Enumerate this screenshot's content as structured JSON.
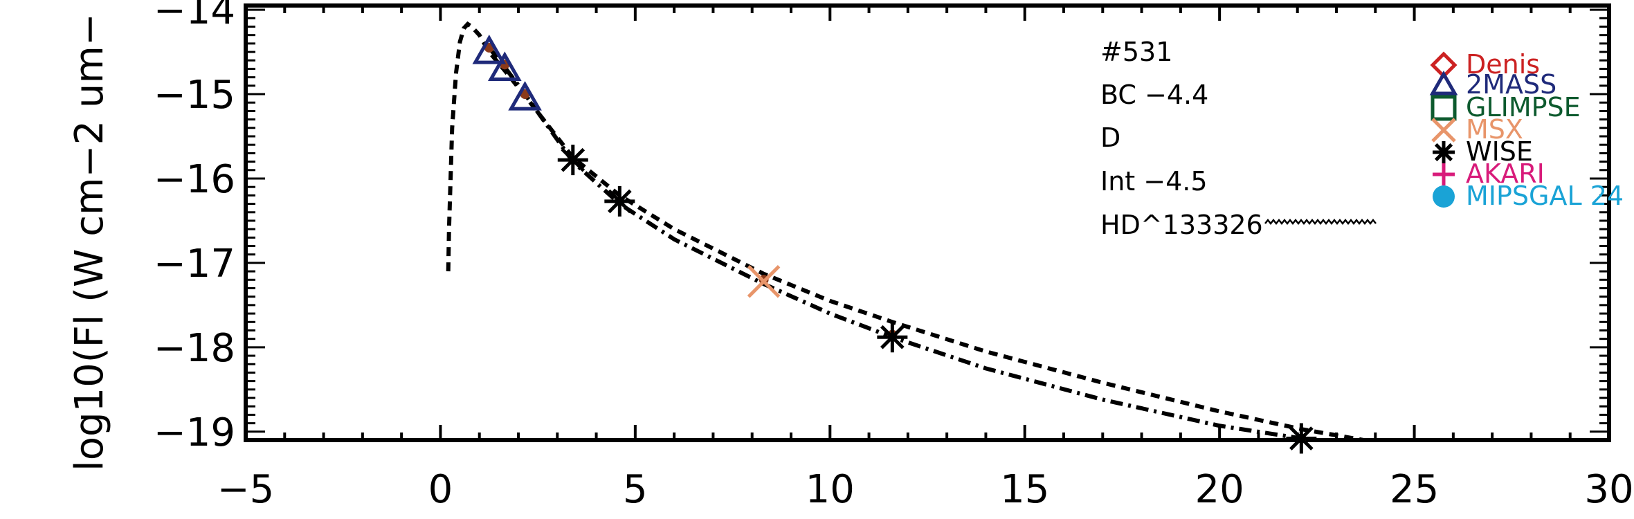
{
  "chart_data": {
    "type": "scatter",
    "xlabel": "",
    "ylabel": "log10(Fl (W cm−2 um−",
    "xlim": [
      -5,
      30
    ],
    "ylim": [
      -19.1,
      -13.95
    ],
    "x_ticks": [
      "−5",
      "0",
      "5",
      "10",
      "15",
      "20",
      "25",
      "30"
    ],
    "x_tick_values": [
      -5,
      0,
      5,
      10,
      15,
      20,
      25,
      30
    ],
    "y_ticks": [
      "−14",
      "−15",
      "−16",
      "−17",
      "−18",
      "−19"
    ],
    "y_tick_values": [
      -14,
      -15,
      -16,
      -17,
      -18,
      -19
    ],
    "annotations": [
      "#531",
      "BC −4.4",
      "D",
      "Int −4.5",
      "HD^133326"
    ],
    "legend": [
      {
        "label": "Denis",
        "symbol": "diamond",
        "color": "#cc2222"
      },
      {
        "label": "2MASS",
        "symbol": "triangle",
        "color": "#1f2a7a"
      },
      {
        "label": "GLIMPSE",
        "symbol": "square",
        "color": "#0d5a2e"
      },
      {
        "label": "MSX",
        "symbol": "cross",
        "color": "#e8956a"
      },
      {
        "label": "WISE",
        "symbol": "asterisk",
        "color": "#000000"
      },
      {
        "label": "AKARI",
        "symbol": "plus",
        "color": "#d81b7a"
      },
      {
        "label": "MIPSGAL 24",
        "symbol": "circle",
        "color": "#1aa3d6"
      }
    ],
    "series": [
      {
        "symbol": "triangle",
        "color": "#1f2a7a",
        "x": [
          1.25,
          1.65,
          2.17
        ],
        "y": [
          -14.5,
          -14.7,
          -15.05
        ]
      },
      {
        "symbol": "asterisk",
        "color": "#000000",
        "x": [
          3.4,
          4.6,
          11.6,
          22.1
        ],
        "y": [
          -15.78,
          -16.27,
          -17.88,
          -19.08
        ]
      },
      {
        "symbol": "cross",
        "color": "#e8956a",
        "x": [
          8.3
        ],
        "y": [
          -17.22
        ]
      }
    ],
    "fitted_points": {
      "x": [
        1.25,
        1.65,
        2.17,
        3.4,
        4.6,
        8.3,
        11.6,
        22.1
      ],
      "y": [
        -14.45,
        -14.65,
        -15.0,
        -15.78,
        -16.27,
        -17.2,
        -17.85,
        -19.08
      ],
      "color": "#8b3a1a"
    },
    "curves": [
      {
        "style": "dashed",
        "x": [
          0.2,
          0.22,
          0.3,
          0.4,
          0.5,
          0.6,
          0.7,
          0.8,
          1.0,
          1.25,
          1.65,
          2.17,
          3.4,
          4.6,
          6.0,
          8.3,
          10.0,
          11.6,
          14.0,
          17.0,
          20.0,
          22.1,
          23.7
        ],
        "y": [
          -17.1,
          -16.6,
          -15.4,
          -14.75,
          -14.38,
          -14.22,
          -14.17,
          -14.2,
          -14.3,
          -14.5,
          -14.72,
          -15.02,
          -15.75,
          -16.2,
          -16.6,
          -17.13,
          -17.45,
          -17.7,
          -18.05,
          -18.42,
          -18.76,
          -18.97,
          -19.1
        ]
      },
      {
        "style": "dashdot",
        "x": [
          1.25,
          1.65,
          2.17,
          3.4,
          4.6,
          6.0,
          8.3,
          10.0,
          11.6,
          14.0,
          17.0,
          20.0,
          22.1
        ],
        "y": [
          -14.45,
          -14.68,
          -15.0,
          -15.8,
          -16.3,
          -16.72,
          -17.25,
          -17.6,
          -17.88,
          -18.25,
          -18.62,
          -18.93,
          -19.08
        ]
      }
    ]
  }
}
